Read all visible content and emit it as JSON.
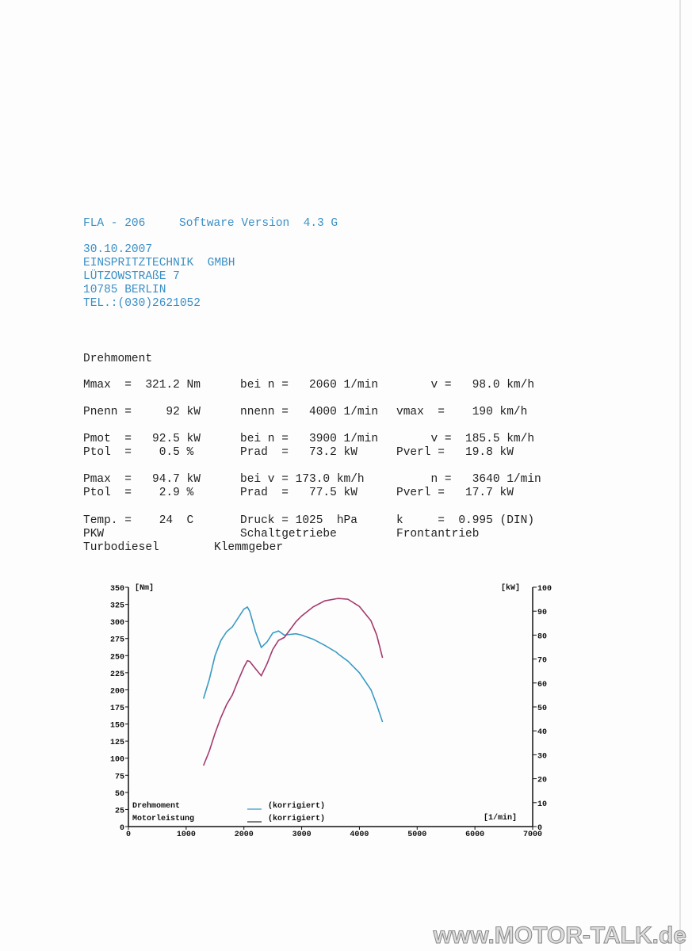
{
  "header": {
    "model": "FLA - 206",
    "software": "Software Version  4.3 G",
    "address": [
      "30.10.2007",
      "EINSPRITZTECHNIK  GMBH",
      "LÜTZOWSTRAßE 7",
      "10785 BERLIN",
      "TEL.:(030)2621052"
    ]
  },
  "section_title": "Drehmoment",
  "results": {
    "rows": [
      [
        "Mmax  =  321.2 Nm",
        "bei n =   2060 1/min",
        "     v =   98.0 km/h"
      ],
      [
        "Pnenn =     92 kW",
        "nnenn =   4000 1/min",
        "vmax  =    190 km/h"
      ],
      [
        "Pmot  =   92.5 kW",
        "bei n =   3900 1/min",
        "     v =  185.5 km/h"
      ],
      [
        "Ptol  =    0.5 %",
        "Prad  =   73.2 kW",
        "Pverl =   19.8 kW"
      ],
      [
        "Pmax  =   94.7 kW",
        "bei v = 173.0 km/h",
        "     n =   3640 1/min"
      ],
      [
        "Ptol  =    2.9 %",
        "Prad  =   77.5 kW",
        "Pverl =   17.7 kW"
      ],
      [
        "Temp. =    24  C",
        "Druck = 1025  hPa",
        "k     =  0.995 (DIN)"
      ],
      [
        "PKW",
        "Schaltgetriebe",
        "Frontantrieb"
      ],
      [
        "Turbodiesel",
        "Klemmgeber"
      ]
    ]
  },
  "chart_data": {
    "type": "line",
    "y_label": "[Nm]",
    "y2_label": "[kW]",
    "x_label": "[1/min]",
    "x": [
      1300,
      1400,
      1500,
      1600,
      1700,
      1800,
      1900,
      2000,
      2060,
      2100,
      2200,
      2300,
      2400,
      2500,
      2600,
      2700,
      2800,
      2900,
      3000,
      3200,
      3400,
      3600,
      3640,
      3800,
      4000,
      4200,
      4300,
      4400
    ],
    "series": [
      {
        "name": "Drehmoment",
        "color": "#3a9ac4",
        "values": [
          187,
          215,
          250,
          272,
          285,
          292,
          305,
          318,
          321,
          315,
          285,
          262,
          270,
          283,
          286,
          280,
          281,
          282,
          280,
          274,
          265,
          255,
          252,
          242,
          225,
          200,
          178,
          153
        ]
      },
      {
        "name": "Motorleistung",
        "color": "#a33a6e",
        "axis": "y2",
        "values": [
          25.5,
          31.5,
          39,
          45.5,
          51,
          55,
          61,
          66.6,
          69.3,
          69,
          66,
          63,
          68,
          74,
          77.8,
          79,
          82.3,
          85.6,
          88,
          91.8,
          94.3,
          95.2,
          95.3,
          95,
          92,
          86,
          80,
          70.5
        ]
      }
    ],
    "legend_notes": [
      "(korrigiert)",
      "(korrigiert)"
    ],
    "xlim": [
      0,
      7000
    ],
    "xticks": [
      0,
      1000,
      2000,
      3000,
      4000,
      5000,
      6000,
      7000
    ],
    "ylim": [
      0,
      350
    ],
    "yticks": [
      0,
      25,
      50,
      75,
      100,
      125,
      150,
      175,
      200,
      225,
      250,
      275,
      300,
      325,
      350
    ],
    "y2lim": [
      0,
      100
    ],
    "y2ticks": [
      0,
      10,
      20,
      30,
      40,
      50,
      60,
      70,
      80,
      90,
      100
    ]
  },
  "watermark": "www.MOTOR-TALK.de"
}
